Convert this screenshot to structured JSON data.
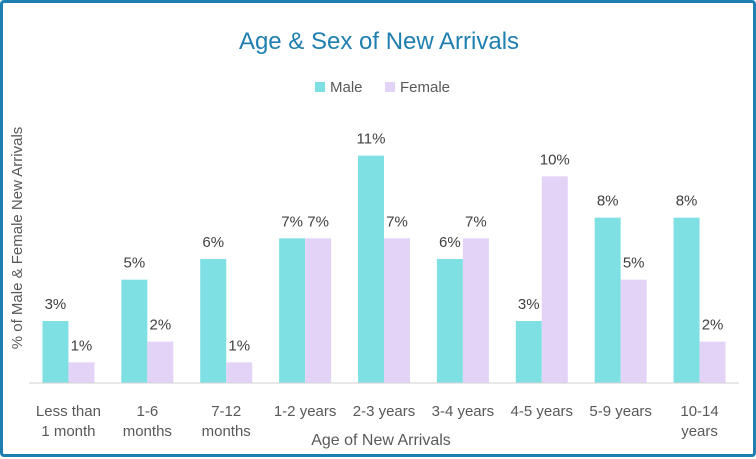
{
  "chart_data": {
    "type": "bar",
    "title": "Age & Sex of New Arrivals",
    "xlabel": "Age of New Arrivals",
    "ylabel": "% of Male & Female New Arrivals",
    "categories": [
      [
        "Less than",
        "1 month"
      ],
      [
        "1-6",
        "months"
      ],
      [
        "7-12",
        "months"
      ],
      [
        "1-2 years"
      ],
      [
        "2-3 years"
      ],
      [
        "3-4 years"
      ],
      [
        "4-5 years"
      ],
      [
        "5-9 years"
      ],
      [
        "10-14",
        "years"
      ]
    ],
    "series": [
      {
        "name": "Male",
        "color": "#7ee0e3",
        "values": [
          3,
          5,
          6,
          7,
          11,
          6,
          3,
          8,
          8
        ]
      },
      {
        "name": "Female",
        "color": "#e3d3f7",
        "values": [
          1,
          2,
          1,
          7,
          7,
          7,
          10,
          5,
          2
        ]
      }
    ],
    "value_suffix": "%",
    "ylim": [
      0,
      12
    ],
    "grid": false,
    "legend_position": "top-center"
  }
}
